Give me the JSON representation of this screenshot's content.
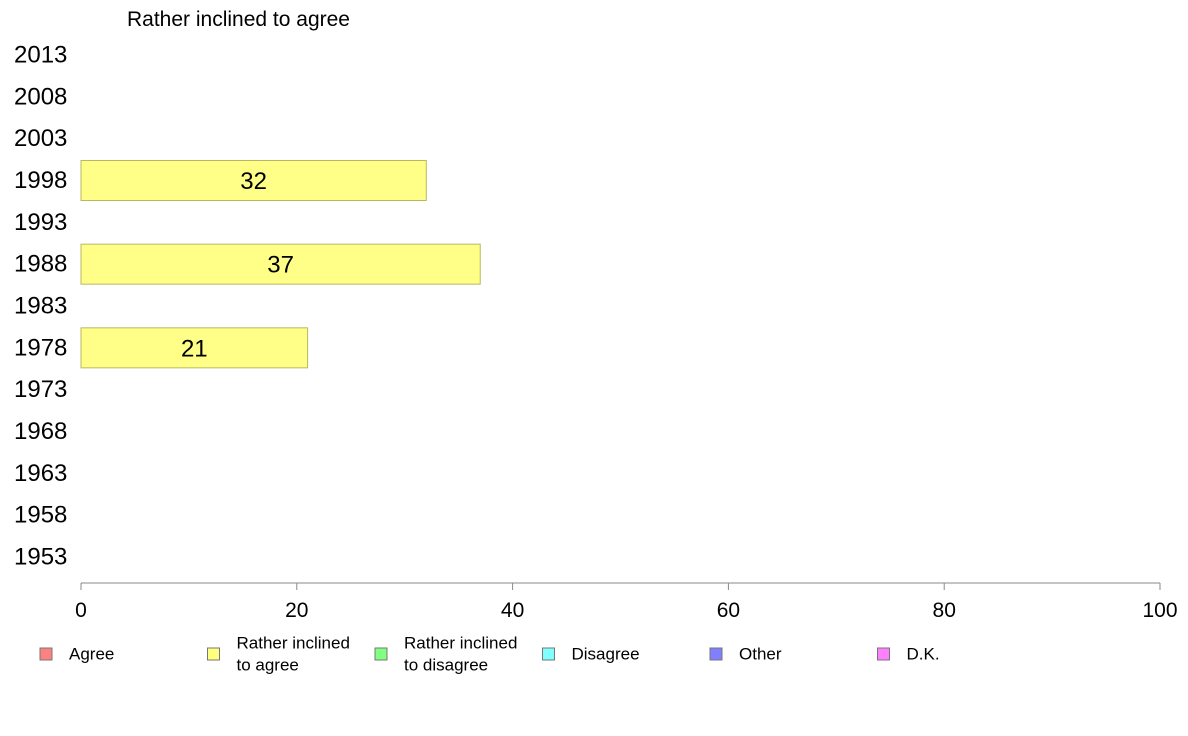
{
  "chart_data": {
    "type": "bar",
    "orientation": "horizontal",
    "title": "Rather inclined to agree",
    "categories": [
      "2013",
      "2008",
      "2003",
      "1998",
      "1993",
      "1988",
      "1983",
      "1978",
      "1973",
      "1968",
      "1963",
      "1958",
      "1953"
    ],
    "series": [
      {
        "name": "Rather inclined to agree",
        "values": [
          null,
          null,
          null,
          32,
          null,
          37,
          null,
          21,
          null,
          null,
          null,
          null,
          null
        ],
        "color": "#ffff88"
      }
    ],
    "data_labels": [
      "",
      "",
      "",
      "32",
      "",
      "37",
      "",
      "21",
      "",
      "",
      "",
      "",
      ""
    ],
    "xlim": [
      0,
      100
    ],
    "xticks": [
      "0",
      "20",
      "40",
      "60",
      "80",
      "100"
    ],
    "grid": false,
    "legend": {
      "placement": "bottom",
      "items": [
        {
          "lines": [
            "Agree"
          ],
          "color": "#ff8080"
        },
        {
          "lines": [
            "Rather inclined",
            "to agree"
          ],
          "color": "#ffff80"
        },
        {
          "lines": [
            "Rather inclined",
            "to disagree"
          ],
          "color": "#80ff80"
        },
        {
          "lines": [
            "Disagree"
          ],
          "color": "#80ffff"
        },
        {
          "lines": [
            "Other"
          ],
          "color": "#8080ff"
        },
        {
          "lines": [
            "D.K."
          ],
          "color": "#ff80ff"
        }
      ]
    }
  }
}
